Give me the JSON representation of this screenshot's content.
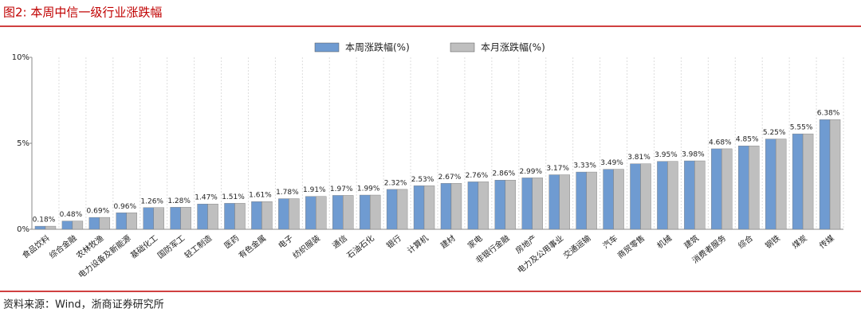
{
  "chart_data": {
    "type": "bar",
    "title": "图2:  本周中信一级行业涨跌幅",
    "source": "资料来源：Wind，浙商证券研究所",
    "categories": [
      "食品饮料",
      "综合金融",
      "农林牧渔",
      "电力设备及新能源",
      "基础化工",
      "国防军工",
      "轻工制造",
      "医药",
      "有色金属",
      "电子",
      "纺织服装",
      "通信",
      "石油石化",
      "银行",
      "计算机",
      "建材",
      "家电",
      "非银行金融",
      "房地产",
      "电力及公用事业",
      "交通运输",
      "汽车",
      "商贸零售",
      "机械",
      "建筑",
      "消费者服务",
      "综合",
      "钢铁",
      "煤炭",
      "传媒"
    ],
    "series": [
      {
        "name": "本周涨跌幅(%)",
        "color": "#6f9bd1",
        "values": [
          0.18,
          0.48,
          0.69,
          0.96,
          1.26,
          1.28,
          1.47,
          1.51,
          1.61,
          1.78,
          1.91,
          1.97,
          1.99,
          2.32,
          2.53,
          2.67,
          2.76,
          2.86,
          2.99,
          3.17,
          3.33,
          3.49,
          3.81,
          3.95,
          3.98,
          4.68,
          4.85,
          5.25,
          5.55,
          6.38
        ],
        "value_labels": [
          "0.18%",
          "0.48%",
          "0.69%",
          "0.96%",
          "1.26%",
          "1.28%",
          "1.47%",
          "1.51%",
          "1.61%",
          "1.78%",
          "1.91%",
          "1.97%",
          "1.99%",
          "2.32%",
          "2.53%",
          "2.67%",
          "2.76%",
          "2.86%",
          "2.99%",
          "3.17%",
          "3.33%",
          "3.49%",
          "3.81%",
          "3.95%",
          "3.98%",
          "4.68%",
          "4.85%",
          "5.25%",
          "5.55%",
          "6.38%"
        ]
      },
      {
        "name": "本月涨跌幅(%)",
        "color": "#bfbfbf",
        "values": [
          0.18,
          0.48,
          0.69,
          0.96,
          1.26,
          1.28,
          1.47,
          1.51,
          1.61,
          1.78,
          1.91,
          1.97,
          1.99,
          2.32,
          2.53,
          2.67,
          2.76,
          2.86,
          2.99,
          3.17,
          3.33,
          3.49,
          3.81,
          3.95,
          3.98,
          4.68,
          4.85,
          5.25,
          5.55,
          6.38
        ]
      }
    ],
    "ylim": [
      0,
      10
    ],
    "yticks": [
      {
        "value": 0,
        "label": "0%"
      },
      {
        "value": 5,
        "label": "5%"
      },
      {
        "value": 10,
        "label": "10%"
      }
    ]
  }
}
